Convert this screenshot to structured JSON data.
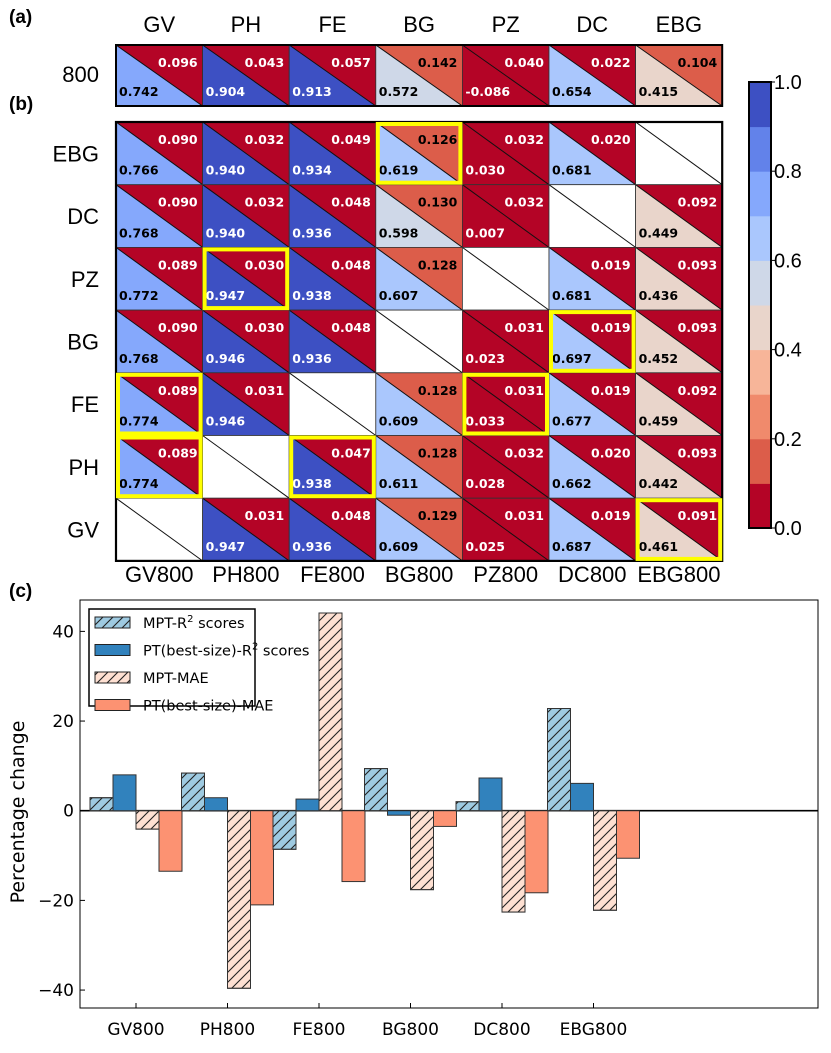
{
  "chart_data": [
    {
      "panel": "(a)",
      "type": "heatmap",
      "description": "Split-cell heatmap: lower-left triangle = R^2 score (colored by colorbar), upper-right triangle = MAE",
      "columns": [
        "GV",
        "PH",
        "FE",
        "BG",
        "PZ",
        "DC",
        "EBG"
      ],
      "rows": [
        "800"
      ],
      "r2": [
        [
          0.742,
          0.904,
          0.913,
          0.572,
          -0.086,
          0.654,
          0.415
        ]
      ],
      "mae": [
        [
          0.096,
          0.043,
          0.057,
          0.142,
          0.04,
          0.022,
          0.104
        ]
      ],
      "r2_labels": [
        [
          "0.742",
          "0.904",
          "0.913",
          "0.572",
          "-0.086",
          "0.654",
          "0.415"
        ]
      ],
      "mae_labels": [
        [
          "0.096",
          "0.043",
          "0.057",
          "0.142",
          "0.040",
          "0.022",
          "0.104"
        ]
      ]
    },
    {
      "panel": "(b)",
      "type": "heatmap",
      "description": "Pairwise split-cell heatmap: lower-left = R^2, upper-right = MAE; yellow boxes mark best cells",
      "columns": [
        "GV800",
        "PH800",
        "FE800",
        "BG800",
        "PZ800",
        "DC800",
        "EBG800"
      ],
      "rows": [
        "EBG",
        "DC",
        "PZ",
        "BG",
        "FE",
        "PH",
        "GV"
      ],
      "r2_labels": [
        [
          "0.766",
          "0.940",
          "0.934",
          "0.619",
          "0.030",
          "0.681",
          null
        ],
        [
          "0.768",
          "0.940",
          "0.936",
          "0.598",
          "0.007",
          null,
          "0.449"
        ],
        [
          "0.772",
          "0.947",
          "0.938",
          "0.607",
          null,
          "0.681",
          "0.436"
        ],
        [
          "0.768",
          "0.946",
          "0.936",
          null,
          "0.023",
          "0.697",
          "0.452"
        ],
        [
          "0.774",
          "0.946",
          null,
          "0.609",
          "0.033",
          "0.677",
          "0.459"
        ],
        [
          "0.774",
          null,
          "0.938",
          "0.611",
          "0.028",
          "0.662",
          "0.442"
        ],
        [
          null,
          "0.947",
          "0.936",
          "0.609",
          "0.025",
          "0.687",
          "0.461"
        ]
      ],
      "mae_labels": [
        [
          "0.090",
          "0.032",
          "0.049",
          "0.126",
          "0.032",
          "0.020",
          null
        ],
        [
          "0.090",
          "0.032",
          "0.048",
          "0.130",
          "0.032",
          null,
          "0.092"
        ],
        [
          "0.089",
          "0.030",
          "0.048",
          "0.128",
          null,
          "0.019",
          "0.093"
        ],
        [
          "0.090",
          "0.030",
          "0.048",
          null,
          "0.031",
          "0.019",
          "0.093"
        ],
        [
          "0.089",
          "0.031",
          null,
          "0.128",
          "0.031",
          "0.019",
          "0.092"
        ],
        [
          "0.089",
          null,
          "0.047",
          "0.128",
          "0.032",
          "0.020",
          "0.093"
        ],
        [
          null,
          "0.031",
          "0.048",
          "0.129",
          "0.031",
          "0.019",
          "0.091"
        ]
      ],
      "highlighted_cells": [
        [
          0,
          3
        ],
        [
          2,
          1
        ],
        [
          3,
          5
        ],
        [
          4,
          0
        ],
        [
          4,
          4
        ],
        [
          5,
          0
        ],
        [
          5,
          2
        ],
        [
          6,
          6
        ]
      ],
      "highlight_color": "#ffff00"
    },
    {
      "panel": "colorbar",
      "type": "heatmap",
      "ticks": [
        "0.0",
        "0.2",
        "0.4",
        "0.6",
        "0.8",
        "1.0"
      ],
      "range": [
        0.0,
        1.0
      ],
      "levels": 10,
      "colors": [
        "#b40426",
        "#dc5d4a",
        "#f08a6c",
        "#f7b599",
        "#e9d5cb",
        "#cfd8e8",
        "#aac7fd",
        "#85a8fc",
        "#6282ea",
        "#3d50c3"
      ]
    },
    {
      "panel": "(c)",
      "type": "bar",
      "categories": [
        "GV800",
        "PH800",
        "FE800",
        "BG800",
        "DC800",
        "EBG800"
      ],
      "series": [
        {
          "name": "MPT-R² scores",
          "values": [
            2.9,
            8.4,
            -8.6,
            9.4,
            2.0,
            22.8
          ],
          "color": "#9ecae1",
          "hatch": true
        },
        {
          "name": "PT(best-size)-R² scores",
          "values": [
            8.0,
            2.9,
            2.6,
            -1.0,
            7.3,
            6.1
          ],
          "color": "#3182bd",
          "hatch": false
        },
        {
          "name": "MPT-MAE",
          "values": [
            -4.1,
            -39.6,
            44.1,
            -17.6,
            -22.6,
            -22.2
          ],
          "color": "#fee0d2",
          "hatch": true
        },
        {
          "name": "PT(best-size)-MAE",
          "values": [
            -13.5,
            -21.0,
            -15.8,
            -3.5,
            -18.3,
            -10.6
          ],
          "color": "#fc9272",
          "hatch": false
        }
      ],
      "ylabel": "Percentage change",
      "xlabel": "",
      "yticks": [
        "−40",
        "−20",
        "0",
        "20",
        "40"
      ],
      "ylim": [
        -44,
        47
      ],
      "legend": "top-left",
      "grid": false
    }
  ],
  "labels": {
    "panel_a": "(a)",
    "panel_b": "(b)",
    "panel_c": "(c)",
    "legend": [
      "MPT-R",
      "PT(best-size)-R",
      "MPT-MAE",
      "PT(best-size)-MAE"
    ],
    "legend_suffix": " scores",
    "superscript": "2"
  }
}
